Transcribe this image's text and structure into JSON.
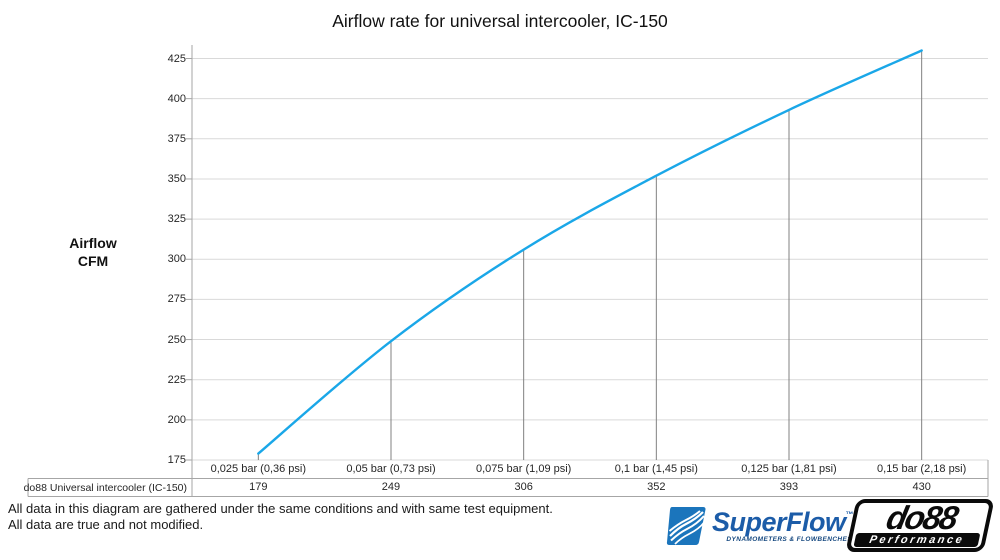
{
  "title": "Airflow rate for universal intercooler, IC-150",
  "y_axis": {
    "label_line1": "Airflow",
    "label_line2": "CFM"
  },
  "legend": {
    "label": "do88 Universal intercooler (IC-150)"
  },
  "chart_data": {
    "type": "line",
    "title": "Airflow rate for universal intercooler, IC-150",
    "xlabel": "",
    "ylabel": "Airflow CFM",
    "categories": [
      "0,025 bar (0,36 psi)",
      "0,05 bar (0,73 psi)",
      "0,075 bar (1,09 psi)",
      "0,1 bar (1,45 psi)",
      "0,125 bar (1,81 psi)",
      "0,15 bar (2,18 psi)"
    ],
    "series": [
      {
        "name": "do88 Universal intercooler (IC-150)",
        "values": [
          179,
          249,
          306,
          352,
          393,
          430
        ]
      }
    ],
    "y_ticks": [
      175,
      200,
      225,
      250,
      275,
      300,
      325,
      350,
      375,
      400,
      425
    ],
    "ylim": [
      175,
      425
    ],
    "grid": true,
    "line_smoothing": true,
    "legend_position": "bottom-left data-table cell",
    "data_table_below_axis": true
  },
  "colors": {
    "line": "#1aa7e8",
    "gridline": "#d9d9d9",
    "axis": "#a6a6a6",
    "dropline": "#808080",
    "text": "#262626"
  },
  "footer": {
    "line1": "All data in this diagram are gathered under the same conditions and with same test equipment.",
    "line2": "All data are true and not modified."
  },
  "logos": {
    "superflow": {
      "name": "SuperFlow",
      "trademark": "™",
      "tagline": "DYNAMOMETERS & FLOWBENCHES"
    },
    "do88": {
      "name": "do88",
      "tagline": "Performance"
    }
  }
}
